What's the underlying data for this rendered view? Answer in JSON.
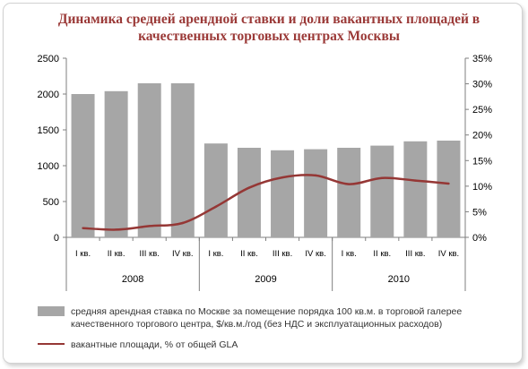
{
  "chart_data": {
    "type": "bar+line",
    "title": "Динамика средней арендной ставки и доли вакантных площадей в качественных торговых центрах Москвы",
    "categories": [
      "I кв.",
      "II кв.",
      "III кв.",
      "IV кв.",
      "I кв.",
      "II кв.",
      "III кв.",
      "IV кв.",
      "I кв.",
      "II кв.",
      "III кв.",
      "IV кв."
    ],
    "groups": [
      {
        "label": "2008",
        "count": 4
      },
      {
        "label": "2009",
        "count": 4
      },
      {
        "label": "2010",
        "count": 4
      }
    ],
    "series": [
      {
        "name": "средняя арендная ставка  по Москве  за помещение  порядка 100 кв.м. в торговой галерее качественного  торгового центра,  $/кв.м./год (без НДС и эксплуатационных  расходов)",
        "type": "bar",
        "axis": "left",
        "color": "#a6a6a6",
        "values": [
          2000,
          2040,
          2150,
          2150,
          1310,
          1250,
          1215,
          1230,
          1250,
          1280,
          1340,
          1350
        ]
      },
      {
        "name": "вакантные  площади, % от общей GLA",
        "type": "line",
        "axis": "right",
        "color": "#953735",
        "values": [
          1.8,
          1.5,
          2.2,
          2.8,
          6.0,
          9.7,
          11.7,
          12.1,
          10.4,
          11.6,
          11.1,
          10.5
        ]
      }
    ],
    "y_left": {
      "min": 0,
      "max": 2500,
      "ticks": [
        0,
        500,
        1000,
        1500,
        2000,
        2500
      ]
    },
    "y_right": {
      "min": 0,
      "max": 35,
      "ticks": [
        "0%",
        "5%",
        "10%",
        "15%",
        "20%",
        "25%",
        "30%",
        "35%"
      ]
    },
    "grid": false,
    "legend_position": "bottom"
  }
}
